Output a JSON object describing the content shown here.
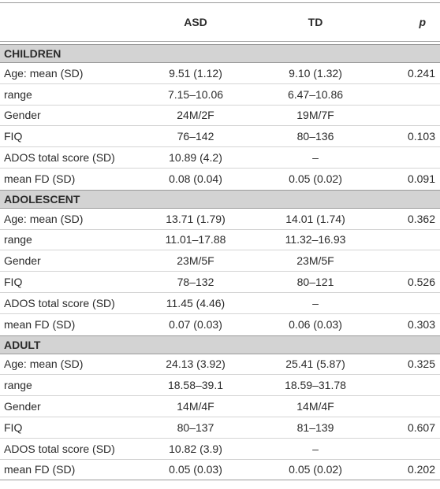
{
  "header": {
    "asd": "ASD",
    "td": "TD",
    "p": "p"
  },
  "sections": [
    {
      "title": "CHILDREN",
      "rows": [
        {
          "label": "Age: mean (SD)",
          "asd": "9.51 (1.12)",
          "td": "9.10 (1.32)",
          "p": "0.241"
        },
        {
          "label": "range",
          "asd": "7.15–10.06",
          "td": "6.47–10.86"
        },
        {
          "label": "Gender",
          "asd": "24M/2F",
          "td": "19M/7F"
        },
        {
          "label": "FIQ",
          "asd": "76–142",
          "td": "80–136",
          "p": "0.103"
        },
        {
          "label": "ADOS total score (SD)",
          "asd": "10.89 (4.2)",
          "td": "–"
        },
        {
          "label": "mean FD (SD)",
          "asd": "0.08 (0.04)",
          "td": "0.05 (0.02)",
          "p": "0.091"
        }
      ]
    },
    {
      "title": "ADOLESCENT",
      "rows": [
        {
          "label": "Age: mean (SD)",
          "asd": "13.71 (1.79)",
          "td": "14.01 (1.74)",
          "p": "0.362"
        },
        {
          "label": "range",
          "asd": "11.01–17.88",
          "td": "11.32–16.93"
        },
        {
          "label": "Gender",
          "asd": "23M/5F",
          "td": "23M/5F"
        },
        {
          "label": "FIQ",
          "asd": "78–132",
          "td": "80–121",
          "p": "0.526"
        },
        {
          "label": "ADOS total score (SD)",
          "asd": "11.45 (4.46)",
          "td": "–"
        },
        {
          "label": "mean FD (SD)",
          "asd": "0.07 (0.03)",
          "td": "0.06 (0.03)",
          "p": "0.303"
        }
      ]
    },
    {
      "title": "ADULT",
      "rows": [
        {
          "label": "Age: mean (SD)",
          "asd": "24.13 (3.92)",
          "td": "25.41 (5.87)",
          "p": "0.325"
        },
        {
          "label": "range",
          "asd": "18.58–39.1",
          "td": "18.59–31.78"
        },
        {
          "label": "Gender",
          "asd": "14M/4F",
          "td": "14M/4F"
        },
        {
          "label": "FIQ",
          "asd": "80–137",
          "td": "81–139",
          "p": "0.607"
        },
        {
          "label": "ADOS total score (SD)",
          "asd": "10.82 (3.9)",
          "td": "–"
        },
        {
          "label": "mean FD (SD)",
          "asd": "0.05 (0.03)",
          "td": "0.05 (0.02)",
          "p": "0.202"
        }
      ]
    }
  ]
}
